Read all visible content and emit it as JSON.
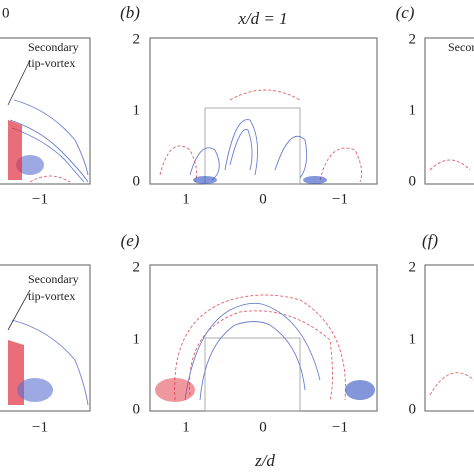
{
  "header": {
    "fragment": "0",
    "title": "x/d = 1"
  },
  "panels": [
    {
      "label": "(b)",
      "yticks": [
        "2",
        "1",
        "0"
      ],
      "xticks": [
        "1",
        "0",
        "−1"
      ]
    },
    {
      "label": "(c)",
      "yticks": [
        "2",
        "1",
        "0"
      ]
    },
    {
      "label": "(e)",
      "yticks": [
        "2",
        "1",
        "0"
      ],
      "xticks": [
        "1",
        "0",
        "−1"
      ]
    },
    {
      "label": "(f)",
      "yticks": [
        "2",
        "1",
        "0"
      ]
    }
  ],
  "left_xticks": [
    "−1",
    "−1"
  ],
  "annotations": [
    {
      "line1": "Secondary",
      "line2": "tip-vortex"
    },
    {
      "line1": "Secondary",
      "line2": "tip-vortex"
    },
    {
      "line1": "Secondary"
    }
  ],
  "xlabel": "z/d"
}
